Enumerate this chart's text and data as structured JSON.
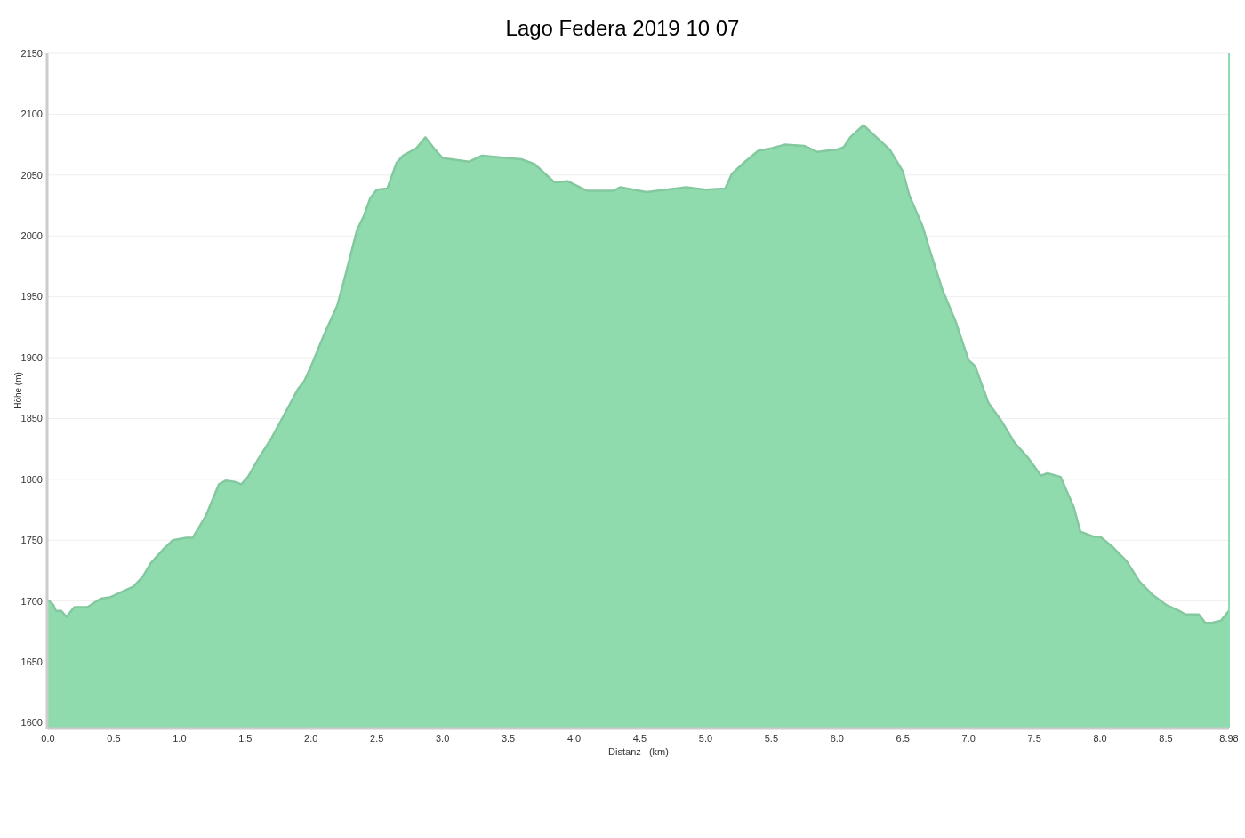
{
  "chart_data": {
    "type": "area",
    "title": "Lago Federa 2019 10 07",
    "xlabel": "Distanz   (km)",
    "ylabel": "Höhe (m)",
    "xlim": [
      0,
      8.98
    ],
    "ylim": [
      1596,
      2150
    ],
    "xticks": [
      {
        "value": 0,
        "label": "0.0"
      },
      0.5,
      {
        "value": 1,
        "label": "1.0"
      },
      1.5,
      {
        "value": 2,
        "label": "2.0"
      },
      2.5,
      {
        "value": 3,
        "label": "3.0"
      },
      3.5,
      {
        "value": 4,
        "label": "4.0"
      },
      4.5,
      {
        "value": 5,
        "label": "5.0"
      },
      5.5,
      {
        "value": 6,
        "label": "6.0"
      },
      6.5,
      {
        "value": 7,
        "label": "7.0"
      },
      7.5,
      {
        "value": 8,
        "label": "8.0"
      },
      8.5,
      8.98
    ],
    "yticks": [
      1600,
      1650,
      1700,
      1750,
      1800,
      1850,
      1900,
      1950,
      2000,
      2050,
      2100,
      2150
    ],
    "grid": "y",
    "ref_lines": [
      {
        "axis": "x",
        "value": 8.98,
        "color": "#8fdcae"
      }
    ],
    "series": [
      {
        "color": "#90dbae",
        "x": [
          0,
          0.04,
          0.06,
          0.1,
          0.14,
          0.2,
          0.25,
          0.3,
          0.4,
          0.47,
          0.55,
          0.65,
          0.72,
          0.78,
          0.88,
          0.95,
          1.05,
          1.1,
          1.2,
          1.3,
          1.35,
          1.42,
          1.47,
          1.52,
          1.6,
          1.7,
          1.8,
          1.9,
          1.95,
          2.0,
          2.1,
          2.2,
          2.25,
          2.3,
          2.35,
          2.4,
          2.45,
          2.5,
          2.58,
          2.65,
          2.7,
          2.8,
          2.87,
          2.95,
          3.0,
          3.2,
          3.3,
          3.5,
          3.6,
          3.7,
          3.85,
          3.95,
          4.1,
          4.3,
          4.35,
          4.45,
          4.55,
          4.7,
          4.85,
          5.0,
          5.15,
          5.2,
          5.3,
          5.4,
          5.5,
          5.6,
          5.75,
          5.85,
          6.0,
          6.05,
          6.1,
          6.2,
          6.3,
          6.4,
          6.5,
          6.55,
          6.65,
          6.7,
          6.8,
          6.9,
          7.0,
          7.05,
          7.15,
          7.25,
          7.35,
          7.45,
          7.55,
          7.6,
          7.7,
          7.8,
          7.85,
          7.95,
          8.0,
          8.1,
          8.2,
          8.3,
          8.4,
          8.5,
          8.6,
          8.65,
          8.75,
          8.8,
          8.85,
          8.92,
          8.98
        ],
        "values": [
          1701,
          1697,
          1692,
          1692,
          1687,
          1695,
          1695,
          1695,
          1702,
          1703,
          1707,
          1712,
          1720,
          1731,
          1743,
          1750,
          1752,
          1752,
          1770,
          1796,
          1799,
          1798,
          1796,
          1802,
          1817,
          1834,
          1854,
          1874,
          1881,
          1893,
          1919,
          1943,
          1963,
          1984,
          2005,
          2016,
          2031,
          2038,
          2039,
          2060,
          2066,
          2072,
          2081,
          2070,
          2064,
          2061,
          2066,
          2064,
          2063,
          2059,
          2044,
          2045,
          2037,
          2037,
          2040,
          2038,
          2036,
          2038,
          2040,
          2038,
          2039,
          2051,
          2061,
          2070,
          2072,
          2075,
          2074,
          2069,
          2071,
          2073,
          2081,
          2091,
          2081,
          2071,
          2053,
          2033,
          2008,
          1990,
          1956,
          1930,
          1898,
          1893,
          1863,
          1848,
          1830,
          1818,
          1803,
          1805,
          1802,
          1777,
          1757,
          1753,
          1753,
          1744,
          1733,
          1716,
          1705,
          1697,
          1692,
          1689,
          1689,
          1682,
          1682,
          1684,
          1692
        ]
      }
    ]
  }
}
